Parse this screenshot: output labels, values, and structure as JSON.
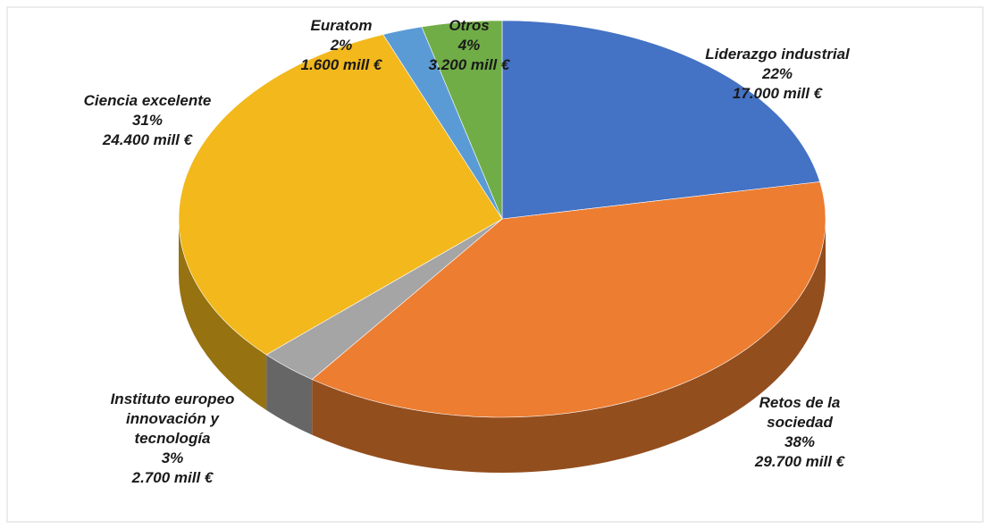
{
  "chart_data": {
    "type": "pie3d",
    "categories": [
      "Liderazgo industrial",
      "Retos de la\nsociedad",
      "Instituto europeo\ninnovación y\ntecnología",
      "Ciencia excelente",
      "Euratom",
      "Otros"
    ],
    "values": [
      22,
      38,
      3,
      31,
      2,
      4
    ],
    "value_labels": [
      "22%",
      "38%",
      "3%",
      "31%",
      "2%",
      "4%"
    ],
    "amounts": [
      17000,
      29700,
      2700,
      24400,
      1600,
      3200
    ],
    "amount_labels": [
      "17.000 mill €",
      "29.700 mill €",
      "2.700 mill €",
      "24.400 mill €",
      "1.600 mill €",
      "3.200 mill €"
    ],
    "colors": [
      "#4472c4",
      "#ed7d31",
      "#a5a5a5",
      "#f2b81c",
      "#5b9bd5",
      "#70ad47"
    ]
  }
}
